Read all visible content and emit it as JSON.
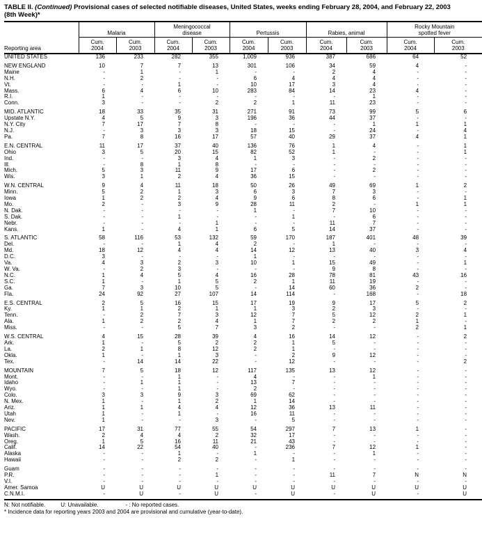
{
  "title": {
    "label": "TABLE II.",
    "continued": "(Continued)",
    "rest": "Provisional cases of selected notifiable diseases, United States, weeks ending February 28, 2004, and February 22, 2003",
    "line2": "(8th Week)*"
  },
  "table": {
    "reporting_area_label": "Reporting area",
    "groups": [
      {
        "label": "Malaria"
      },
      {
        "label": "Meningococcal\ndisease"
      },
      {
        "label": "Pertussis"
      },
      {
        "label": "Rabies, animal"
      },
      {
        "label": "Rocky Mountain\nspotted fever"
      }
    ],
    "subcols": [
      "Cum.\n2004",
      "Cum.\n2003"
    ],
    "rows": [
      {
        "area": "UNITED STATES",
        "total": true,
        "gap": false,
        "values": [
          "136",
          "233",
          "282",
          "355",
          "1,009",
          "936",
          "387",
          "686",
          "64",
          "52"
        ]
      },
      {
        "area": "NEW ENGLAND",
        "total": true,
        "gap": true,
        "values": [
          "10",
          "7",
          "7",
          "13",
          "301",
          "106",
          "34",
          "59",
          "4",
          "-"
        ]
      },
      {
        "area": "Maine",
        "total": false,
        "gap": false,
        "values": [
          "-",
          "1",
          "-",
          "1",
          "-",
          "-",
          "2",
          "4",
          "-",
          "-"
        ]
      },
      {
        "area": "N.H.",
        "total": false,
        "gap": false,
        "values": [
          "-",
          "2",
          "-",
          "-",
          "6",
          "4",
          "4",
          "4",
          "-",
          "-"
        ]
      },
      {
        "area": "Vt.",
        "total": false,
        "gap": false,
        "values": [
          "-",
          "-",
          "1",
          "-",
          "10",
          "17",
          "3",
          "4",
          "-",
          "-"
        ]
      },
      {
        "area": "Mass.",
        "total": false,
        "gap": false,
        "values": [
          "6",
          "4",
          "6",
          "10",
          "283",
          "84",
          "14",
          "23",
          "4",
          "-"
        ]
      },
      {
        "area": "R.I.",
        "total": false,
        "gap": false,
        "values": [
          "1",
          "-",
          "-",
          "-",
          "-",
          "-",
          "-",
          "1",
          "-",
          "-"
        ]
      },
      {
        "area": "Conn.",
        "total": false,
        "gap": false,
        "values": [
          "3",
          "-",
          "-",
          "2",
          "2",
          "1",
          "11",
          "23",
          "-",
          "-"
        ]
      },
      {
        "area": "MID. ATLANTIC",
        "total": true,
        "gap": true,
        "values": [
          "18",
          "33",
          "35",
          "31",
          "271",
          "91",
          "73",
          "99",
          "5",
          "6"
        ]
      },
      {
        "area": "Upstate N.Y.",
        "total": false,
        "gap": false,
        "values": [
          "4",
          "5",
          "9",
          "3",
          "196",
          "36",
          "44",
          "37",
          "-",
          "-"
        ]
      },
      {
        "area": "N.Y. City",
        "total": false,
        "gap": false,
        "values": [
          "7",
          "17",
          "7",
          "8",
          "-",
          "-",
          "-",
          "1",
          "1",
          "1"
        ]
      },
      {
        "area": "N.J.",
        "total": false,
        "gap": false,
        "values": [
          "-",
          "3",
          "3",
          "3",
          "18",
          "15",
          "-",
          "24",
          "-",
          "4"
        ]
      },
      {
        "area": "Pa.",
        "total": false,
        "gap": false,
        "values": [
          "7",
          "8",
          "16",
          "17",
          "57",
          "40",
          "29",
          "37",
          "4",
          "1"
        ]
      },
      {
        "area": "E.N. CENTRAL",
        "total": true,
        "gap": true,
        "values": [
          "11",
          "17",
          "37",
          "40",
          "136",
          "76",
          "1",
          "4",
          "-",
          "1"
        ]
      },
      {
        "area": "Ohio",
        "total": false,
        "gap": false,
        "values": [
          "3",
          "5",
          "20",
          "15",
          "82",
          "52",
          "1",
          "-",
          "-",
          "1"
        ]
      },
      {
        "area": "Ind.",
        "total": false,
        "gap": false,
        "values": [
          "-",
          "-",
          "3",
          "4",
          "1",
          "3",
          "-",
          "2",
          "-",
          "-"
        ]
      },
      {
        "area": "Ill.",
        "total": false,
        "gap": false,
        "values": [
          "-",
          "8",
          "1",
          "8",
          "-",
          "-",
          "-",
          "-",
          "-",
          "-"
        ]
      },
      {
        "area": "Mich.",
        "total": false,
        "gap": false,
        "values": [
          "5",
          "3",
          "11",
          "9",
          "17",
          "6",
          "-",
          "2",
          "-",
          "-"
        ]
      },
      {
        "area": "Wis.",
        "total": false,
        "gap": false,
        "values": [
          "3",
          "1",
          "2",
          "4",
          "36",
          "15",
          "-",
          "-",
          "-",
          "-"
        ]
      },
      {
        "area": "W.N. CENTRAL",
        "total": true,
        "gap": true,
        "values": [
          "9",
          "4",
          "11",
          "18",
          "50",
          "26",
          "49",
          "69",
          "1",
          "2"
        ]
      },
      {
        "area": "Minn.",
        "total": false,
        "gap": false,
        "values": [
          "5",
          "2",
          "1",
          "3",
          "6",
          "3",
          "7",
          "3",
          "-",
          "-"
        ]
      },
      {
        "area": "Iowa",
        "total": false,
        "gap": false,
        "values": [
          "1",
          "2",
          "2",
          "4",
          "9",
          "6",
          "8",
          "6",
          "-",
          "1"
        ]
      },
      {
        "area": "Mo.",
        "total": false,
        "gap": false,
        "values": [
          "2",
          "-",
          "3",
          "9",
          "28",
          "11",
          "2",
          "-",
          "1",
          "1"
        ]
      },
      {
        "area": "N. Dak.",
        "total": false,
        "gap": false,
        "values": [
          "-",
          "-",
          "-",
          "-",
          "1",
          "-",
          "7",
          "10",
          "-",
          "-"
        ]
      },
      {
        "area": "S. Dak.",
        "total": false,
        "gap": false,
        "values": [
          "-",
          "-",
          "1",
          "-",
          "-",
          "1",
          "-",
          "6",
          "-",
          "-"
        ]
      },
      {
        "area": "Nebr.",
        "total": false,
        "gap": false,
        "values": [
          "-",
          "-",
          "-",
          "1",
          "-",
          "-",
          "11",
          "7",
          "-",
          "-"
        ]
      },
      {
        "area": "Kans.",
        "total": false,
        "gap": false,
        "values": [
          "1",
          "-",
          "4",
          "1",
          "6",
          "5",
          "14",
          "37",
          "-",
          "-"
        ]
      },
      {
        "area": "S. ATLANTIC",
        "total": true,
        "gap": true,
        "values": [
          "58",
          "116",
          "53",
          "132",
          "59",
          "170",
          "187",
          "401",
          "48",
          "39"
        ]
      },
      {
        "area": "Del.",
        "total": false,
        "gap": false,
        "values": [
          "-",
          "-",
          "1",
          "4",
          "2",
          "-",
          "1",
          "-",
          "-",
          "-"
        ]
      },
      {
        "area": "Md.",
        "total": false,
        "gap": false,
        "values": [
          "18",
          "12",
          "4",
          "4",
          "14",
          "12",
          "13",
          "40",
          "3",
          "4"
        ]
      },
      {
        "area": "D.C.",
        "total": false,
        "gap": false,
        "values": [
          "3",
          "-",
          "-",
          "-",
          "1",
          "-",
          "-",
          "-",
          "-",
          "-"
        ]
      },
      {
        "area": "Va.",
        "total": false,
        "gap": false,
        "values": [
          "4",
          "3",
          "2",
          "3",
          "10",
          "1",
          "15",
          "49",
          "-",
          "1"
        ]
      },
      {
        "area": "W. Va.",
        "total": false,
        "gap": false,
        "values": [
          "-",
          "2",
          "3",
          "-",
          "-",
          "-",
          "9",
          "8",
          "-",
          "-"
        ]
      },
      {
        "area": "N.C.",
        "total": false,
        "gap": false,
        "values": [
          "1",
          "4",
          "5",
          "4",
          "16",
          "28",
          "78",
          "81",
          "43",
          "16"
        ]
      },
      {
        "area": "S.C.",
        "total": false,
        "gap": false,
        "values": [
          "1",
          "-",
          "1",
          "5",
          "2",
          "1",
          "11",
          "19",
          "-",
          "-"
        ]
      },
      {
        "area": "Ga.",
        "total": false,
        "gap": false,
        "values": [
          "7",
          "3",
          "10",
          "5",
          "-",
          "14",
          "60",
          "36",
          "2",
          "-"
        ]
      },
      {
        "area": "Fla.",
        "total": false,
        "gap": false,
        "values": [
          "24",
          "92",
          "27",
          "107",
          "14",
          "114",
          "-",
          "168",
          "-",
          "18"
        ]
      },
      {
        "area": "E.S. CENTRAL",
        "total": true,
        "gap": true,
        "values": [
          "2",
          "5",
          "16",
          "15",
          "17",
          "19",
          "9",
          "17",
          "5",
          "2"
        ]
      },
      {
        "area": "Ky.",
        "total": false,
        "gap": false,
        "values": [
          "1",
          "1",
          "2",
          "1",
          "1",
          "3",
          "2",
          "3",
          "-",
          "-"
        ]
      },
      {
        "area": "Tenn.",
        "total": false,
        "gap": false,
        "values": [
          "-",
          "2",
          "7",
          "3",
          "12",
          "7",
          "5",
          "12",
          "2",
          "1"
        ]
      },
      {
        "area": "Ala.",
        "total": false,
        "gap": false,
        "values": [
          "1",
          "2",
          "2",
          "4",
          "1",
          "7",
          "2",
          "2",
          "1",
          "-"
        ]
      },
      {
        "area": "Miss.",
        "total": false,
        "gap": false,
        "values": [
          "-",
          "-",
          "5",
          "7",
          "3",
          "2",
          "-",
          "-",
          "2",
          "1"
        ]
      },
      {
        "area": "W.S. CENTRAL",
        "total": true,
        "gap": true,
        "values": [
          "4",
          "15",
          "28",
          "39",
          "4",
          "16",
          "14",
          "12",
          "-",
          "2"
        ]
      },
      {
        "area": "Ark.",
        "total": false,
        "gap": false,
        "values": [
          "1",
          "-",
          "5",
          "2",
          "2",
          "1",
          "5",
          "-",
          "-",
          "-"
        ]
      },
      {
        "area": "La.",
        "total": false,
        "gap": false,
        "values": [
          "2",
          "1",
          "8",
          "12",
          "2",
          "1",
          "-",
          "-",
          "-",
          "-"
        ]
      },
      {
        "area": "Okla.",
        "total": false,
        "gap": false,
        "values": [
          "1",
          "-",
          "1",
          "3",
          "-",
          "2",
          "9",
          "12",
          "-",
          "-"
        ]
      },
      {
        "area": "Tex.",
        "total": false,
        "gap": false,
        "values": [
          "-",
          "14",
          "14",
          "22",
          "-",
          "12",
          "-",
          "-",
          "-",
          "2"
        ]
      },
      {
        "area": "MOUNTAIN",
        "total": true,
        "gap": true,
        "values": [
          "7",
          "5",
          "18",
          "12",
          "117",
          "135",
          "13",
          "12",
          "-",
          "-"
        ]
      },
      {
        "area": "Mont.",
        "total": false,
        "gap": false,
        "values": [
          "-",
          "-",
          "1",
          "-",
          "4",
          "-",
          "-",
          "1",
          "-",
          "-"
        ]
      },
      {
        "area": "Idaho",
        "total": false,
        "gap": false,
        "values": [
          "-",
          "1",
          "1",
          "-",
          "13",
          "7",
          "-",
          "-",
          "-",
          "-"
        ]
      },
      {
        "area": "Wyo.",
        "total": false,
        "gap": false,
        "values": [
          "-",
          "-",
          "1",
          "-",
          "2",
          "-",
          "-",
          "-",
          "-",
          "-"
        ]
      },
      {
        "area": "Colo.",
        "total": false,
        "gap": false,
        "values": [
          "3",
          "3",
          "9",
          "3",
          "69",
          "62",
          "-",
          "-",
          "-",
          "-"
        ]
      },
      {
        "area": "N. Mex.",
        "total": false,
        "gap": false,
        "values": [
          "1",
          "-",
          "1",
          "2",
          "1",
          "14",
          "-",
          "-",
          "-",
          "-"
        ]
      },
      {
        "area": "Ariz.",
        "total": false,
        "gap": false,
        "values": [
          "1",
          "1",
          "4",
          "4",
          "12",
          "36",
          "13",
          "11",
          "-",
          "-"
        ]
      },
      {
        "area": "Utah",
        "total": false,
        "gap": false,
        "values": [
          "1",
          "-",
          "1",
          "-",
          "16",
          "11",
          "-",
          "-",
          "-",
          "-"
        ]
      },
      {
        "area": "Nev.",
        "total": false,
        "gap": false,
        "values": [
          "1",
          "-",
          "-",
          "3",
          "-",
          "5",
          "-",
          "-",
          "-",
          "-"
        ]
      },
      {
        "area": "PACIFIC",
        "total": true,
        "gap": true,
        "values": [
          "17",
          "31",
          "77",
          "55",
          "54",
          "297",
          "7",
          "13",
          "1",
          "-"
        ]
      },
      {
        "area": "Wash.",
        "total": false,
        "gap": false,
        "values": [
          "2",
          "4",
          "4",
          "2",
          "32",
          "17",
          "-",
          "-",
          "-",
          "-"
        ]
      },
      {
        "area": "Oreg.",
        "total": false,
        "gap": false,
        "values": [
          "1",
          "5",
          "16",
          "11",
          "21",
          "43",
          "-",
          "-",
          "-",
          "-"
        ]
      },
      {
        "area": "Calif.",
        "total": false,
        "gap": false,
        "values": [
          "14",
          "22",
          "54",
          "40",
          "-",
          "236",
          "7",
          "12",
          "1",
          "-"
        ]
      },
      {
        "area": "Alaska",
        "total": false,
        "gap": false,
        "values": [
          "-",
          "-",
          "1",
          "-",
          "1",
          "-",
          "-",
          "1",
          "-",
          "-"
        ]
      },
      {
        "area": "Hawaii",
        "total": false,
        "gap": false,
        "values": [
          "-",
          "-",
          "2",
          "2",
          "-",
          "1",
          "-",
          "-",
          "-",
          "-"
        ]
      },
      {
        "area": "Guam",
        "total": false,
        "gap": true,
        "values": [
          "-",
          "-",
          "-",
          "-",
          "-",
          "-",
          "-",
          "-",
          "-",
          "-"
        ]
      },
      {
        "area": "P.R.",
        "total": false,
        "gap": false,
        "values": [
          "-",
          "-",
          "-",
          "1",
          "-",
          "-",
          "11",
          "7",
          "N",
          "N"
        ]
      },
      {
        "area": "V.I.",
        "total": false,
        "gap": false,
        "values": [
          "-",
          "-",
          "-",
          "-",
          "-",
          "-",
          "-",
          "-",
          "-",
          "-"
        ]
      },
      {
        "area": "Amer. Samoa",
        "total": false,
        "gap": false,
        "values": [
          "U",
          "U",
          "U",
          "U",
          "U",
          "U",
          "U",
          "U",
          "U",
          "U"
        ]
      },
      {
        "area": "C.N.M.I.",
        "total": false,
        "gap": false,
        "values": [
          "-",
          "U",
          "-",
          "U",
          "-",
          "U",
          "-",
          "U",
          "-",
          "U"
        ]
      }
    ]
  },
  "footnotes": {
    "n": "N: Not notifiable.",
    "u": "U: Unavailable.",
    "dash": "- : No reported cases.",
    "line2": "* Incidence data for reporting years 2003 and 2004 are provisional and cumulative (year-to-date)."
  }
}
